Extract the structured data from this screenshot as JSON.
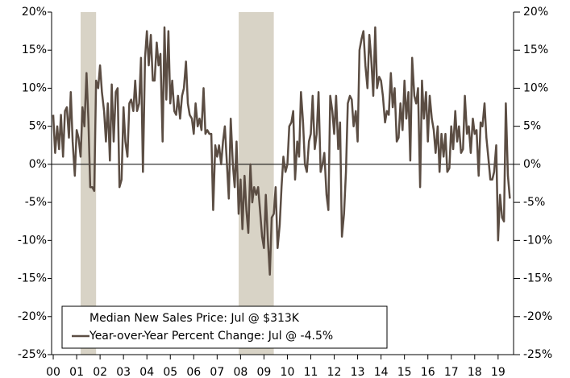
{
  "chart_data": {
    "type": "line",
    "annotations": [
      "Median New Sales Price: Jul @ $313K"
    ],
    "series": [
      {
        "name": "Year-over-Year Percent Change: Jul @ -4.5%",
        "color": "#5b4d43",
        "values": [
          6.5,
          1.5,
          5,
          2,
          6.5,
          1,
          7,
          7.5,
          3.5,
          9.5,
          3,
          -1.5,
          4.5,
          3.5,
          1,
          7.5,
          5,
          12,
          6,
          -3,
          -3,
          -3.5,
          11,
          10,
          13,
          9.5,
          7,
          3,
          8,
          0.5,
          10.5,
          3,
          9.5,
          10,
          -3,
          -2,
          7.5,
          3,
          1,
          8,
          8.5,
          7,
          11,
          7,
          8,
          14,
          -1,
          14,
          17.5,
          13,
          17,
          11,
          11,
          16,
          13,
          14.5,
          3,
          18,
          8.5,
          17.5,
          8,
          11,
          7,
          6.5,
          9,
          6,
          9,
          10,
          13.5,
          8,
          6.5,
          6,
          4,
          8,
          5,
          6,
          4.5,
          10,
          4,
          4.5,
          4,
          4,
          -6,
          2.5,
          1,
          2.5,
          0,
          3,
          5,
          0,
          -4.5,
          6,
          0,
          -3,
          3,
          -6.5,
          -2,
          -8.5,
          -1.5,
          -6,
          -9,
          0,
          -5,
          -3,
          -4,
          -3,
          -6,
          -9.5,
          -11,
          -4,
          -10,
          -14.5,
          -7,
          -6.5,
          -3,
          -11,
          -8,
          -3,
          1,
          -1,
          0,
          5,
          5.5,
          7,
          -2,
          3,
          1,
          9.5,
          5.5,
          0,
          -1,
          3,
          4,
          9,
          2,
          4,
          9.5,
          -1,
          0,
          1.5,
          -4,
          -6,
          9,
          7,
          4,
          9,
          2,
          5.5,
          -9.5,
          -6.5,
          -1,
          8,
          9,
          8.5,
          5,
          7,
          3,
          15,
          16.5,
          17.5,
          13,
          10,
          17,
          14,
          9,
          18,
          10,
          11.5,
          11,
          9,
          5.5,
          7,
          6.5,
          12,
          7.5,
          10,
          3,
          3.5,
          8,
          4.5,
          11,
          6,
          9.5,
          0.5,
          14,
          9,
          8,
          10,
          -3,
          11,
          6,
          9.5,
          3,
          9,
          6,
          4.5,
          1.5,
          5,
          -1,
          4,
          1,
          4,
          -1,
          -0.5,
          5,
          2,
          7,
          3,
          5,
          1.5,
          2,
          9,
          4,
          5,
          1.5,
          6,
          4,
          4.5,
          -1.5,
          5.5,
          5,
          8,
          3.5,
          1,
          -2,
          -2,
          -1,
          2.5,
          -10,
          -4,
          -7,
          -7.5,
          8,
          -1.5,
          -4.5
        ]
      }
    ],
    "x": [
      2000,
      2000.08,
      2000.17,
      2000.25,
      2000.33,
      2000.42,
      2000.5,
      2000.58,
      2000.67,
      2000.75,
      2000.83,
      2000.92,
      2001,
      2001.08,
      2001.17,
      2001.25,
      2001.33,
      2001.42,
      2001.5,
      2001.58,
      2001.67,
      2001.75,
      2001.83,
      2001.92,
      2002,
      2002.08,
      2002.17,
      2002.25,
      2002.33,
      2002.42,
      2002.5,
      2002.58,
      2002.67,
      2002.75,
      2002.83,
      2002.92,
      2003,
      2003.08,
      2003.17,
      2003.25,
      2003.33,
      2003.42,
      2003.5,
      2003.58,
      2003.67,
      2003.75,
      2003.83,
      2003.92,
      2004,
      2004.08,
      2004.17,
      2004.25,
      2004.33,
      2004.42,
      2004.5,
      2004.58,
      2004.67,
      2004.75,
      2004.83,
      2004.92,
      2005,
      2005.08,
      2005.17,
      2005.25,
      2005.33,
      2005.42,
      2005.5,
      2005.58,
      2005.67,
      2005.75,
      2005.83,
      2005.92,
      2006,
      2006.08,
      2006.17,
      2006.25,
      2006.33,
      2006.42,
      2006.5,
      2006.58,
      2006.67,
      2006.75,
      2006.83,
      2006.92,
      2007,
      2007.08,
      2007.17,
      2007.25,
      2007.33,
      2007.42,
      2007.5,
      2007.58,
      2007.67,
      2007.75,
      2007.83,
      2007.92,
      2008,
      2008.08,
      2008.17,
      2008.25,
      2008.33,
      2008.42,
      2008.5,
      2008.58,
      2008.67,
      2008.75,
      2008.83,
      2008.92,
      2009,
      2009.08,
      2009.17,
      2009.25,
      2009.33,
      2009.42,
      2009.5,
      2009.58,
      2009.67,
      2009.75,
      2009.83,
      2009.92,
      2010,
      2010.08,
      2010.17,
      2010.25,
      2010.33,
      2010.42,
      2010.5,
      2010.58,
      2010.67,
      2010.75,
      2010.83,
      2010.92,
      2011,
      2011.08,
      2011.17,
      2011.25,
      2011.33,
      2011.42,
      2011.5,
      2011.58,
      2011.67,
      2011.75,
      2011.83,
      2011.92,
      2012,
      2012.08,
      2012.17,
      2012.25,
      2012.33,
      2012.42,
      2012.5,
      2012.58,
      2012.67,
      2012.75,
      2012.83,
      2012.92,
      2013,
      2013.08,
      2013.17,
      2013.25,
      2013.33,
      2013.42,
      2013.5,
      2013.58,
      2013.67,
      2013.75,
      2013.83,
      2013.92,
      2014,
      2014.08,
      2014.17,
      2014.25,
      2014.33,
      2014.42,
      2014.5,
      2014.58,
      2014.67,
      2014.75,
      2014.83,
      2014.92,
      2015,
      2015.08,
      2015.17,
      2015.25,
      2015.33,
      2015.42,
      2015.5,
      2015.58,
      2015.67,
      2015.75,
      2015.83,
      2015.92,
      2016,
      2016.08,
      2016.17,
      2016.25,
      2016.33,
      2016.42,
      2016.5,
      2016.58,
      2016.67,
      2016.75,
      2016.83,
      2016.92,
      2017,
      2017.08,
      2017.17,
      2017.25,
      2017.33,
      2017.42,
      2017.5,
      2017.58,
      2017.67,
      2017.75,
      2017.83,
      2017.92,
      2018,
      2018.08,
      2018.17,
      2018.25,
      2018.33,
      2018.42,
      2018.5,
      2018.58,
      2018.67,
      2018.75,
      2018.83,
      2018.92,
      2019,
      2019.08,
      2019.17,
      2019.25,
      2019.33,
      2019.42,
      2019.5
    ],
    "shaded_periods": [
      [
        2001.17,
        2001.83
      ],
      [
        2007.92,
        2009.42
      ]
    ],
    "shade_color": "#d8d3c6",
    "xlim": [
      1999.93,
      2019.66
    ],
    "xticks": [
      {
        "value": 2000,
        "label": "00"
      },
      {
        "value": 2001,
        "label": "01"
      },
      {
        "value": 2002,
        "label": "02"
      },
      {
        "value": 2003,
        "label": "03"
      },
      {
        "value": 2004,
        "label": "04"
      },
      {
        "value": 2005,
        "label": "05"
      },
      {
        "value": 2006,
        "label": "06"
      },
      {
        "value": 2007,
        "label": "07"
      },
      {
        "value": 2008,
        "label": "08"
      },
      {
        "value": 2009,
        "label": "09"
      },
      {
        "value": 2010,
        "label": "10"
      },
      {
        "value": 2011,
        "label": "11"
      },
      {
        "value": 2012,
        "label": "12"
      },
      {
        "value": 2013,
        "label": "13"
      },
      {
        "value": 2014,
        "label": "14"
      },
      {
        "value": 2015,
        "label": "15"
      },
      {
        "value": 2016,
        "label": "16"
      },
      {
        "value": 2017,
        "label": "17"
      },
      {
        "value": 2018,
        "label": "18"
      },
      {
        "value": 2019,
        "label": "19"
      }
    ],
    "ylim": [
      -25,
      20
    ],
    "yticks": [
      {
        "value": -25,
        "label": "-25%"
      },
      {
        "value": -20,
        "label": "-20%"
      },
      {
        "value": -15,
        "label": "-15%"
      },
      {
        "value": -10,
        "label": "-10%"
      },
      {
        "value": -5,
        "label": "-5%"
      },
      {
        "value": 0,
        "label": "0%"
      },
      {
        "value": 5,
        "label": "5%"
      },
      {
        "value": 10,
        "label": "10%"
      },
      {
        "value": 15,
        "label": "15%"
      },
      {
        "value": 20,
        "label": "20%"
      }
    ],
    "legend": "bottom-left"
  }
}
